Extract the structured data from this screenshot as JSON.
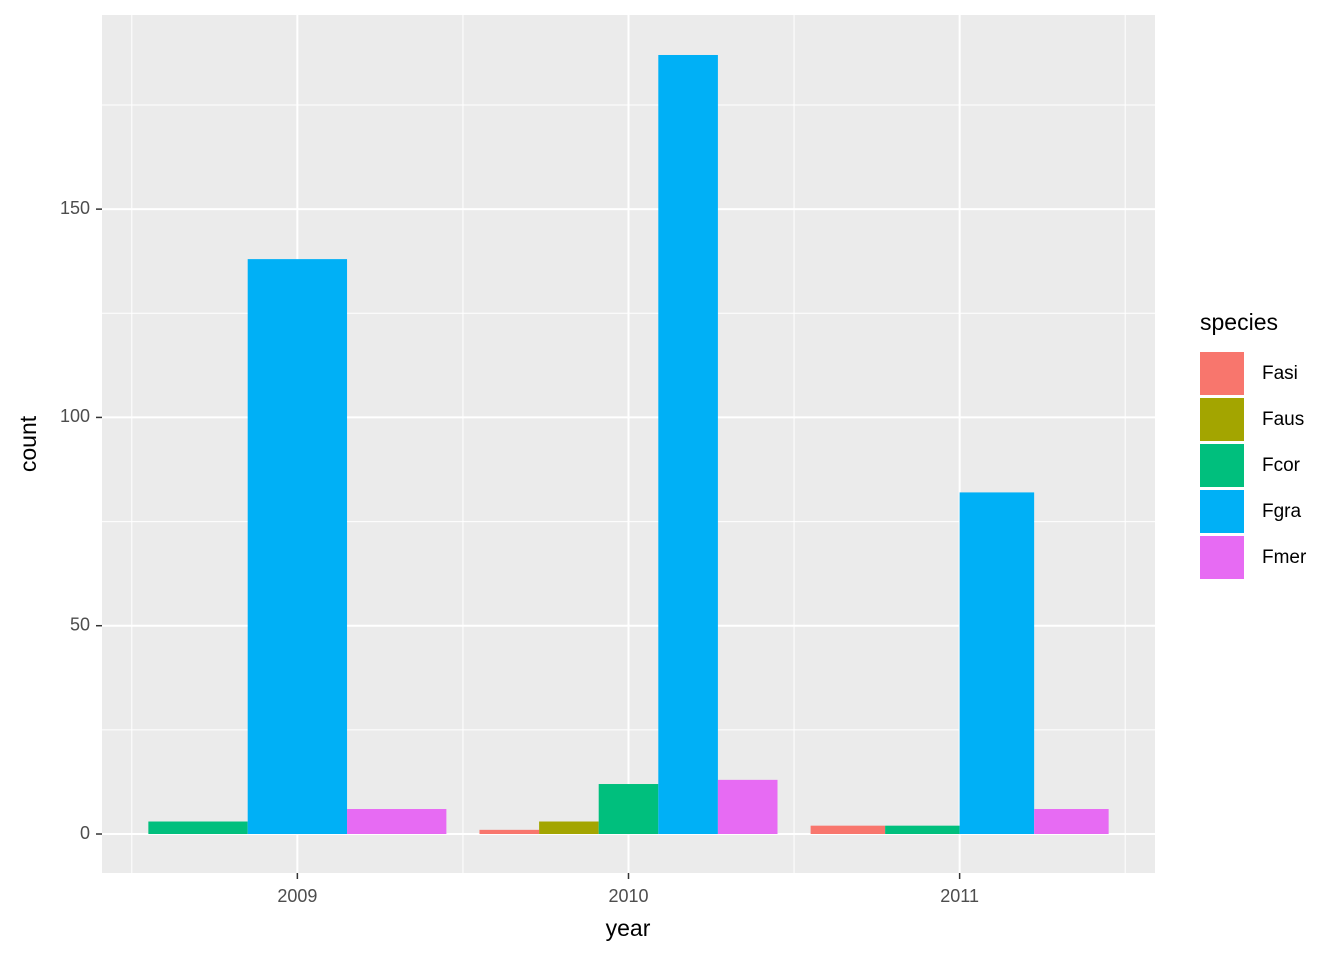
{
  "chart_data": {
    "type": "bar",
    "x_label": "year",
    "y_label": "count",
    "x": [
      2009,
      2010,
      2011
    ],
    "series": [
      {
        "name": "Fasi",
        "color": "#f8766d",
        "values": [
          null,
          1,
          2
        ]
      },
      {
        "name": "Faus",
        "color": "#a3a500",
        "values": [
          null,
          3,
          null
        ]
      },
      {
        "name": "Fcor",
        "color": "#00bf7d",
        "values": [
          3,
          12,
          2
        ]
      },
      {
        "name": "Fgra",
        "color": "#00b0f6",
        "values": [
          138,
          187,
          82
        ]
      },
      {
        "name": "Fmer",
        "color": "#e76bf3",
        "values": [
          6,
          13,
          6
        ]
      }
    ],
    "legend_title": "species",
    "xlim": [
      2008.41,
      2011.59
    ],
    "xticks": [
      2009,
      2010,
      2011
    ],
    "ylim": [
      -9.36,
      196.6
    ],
    "yticks": [
      0,
      50,
      100,
      150
    ],
    "grid": true,
    "legend": "right"
  }
}
